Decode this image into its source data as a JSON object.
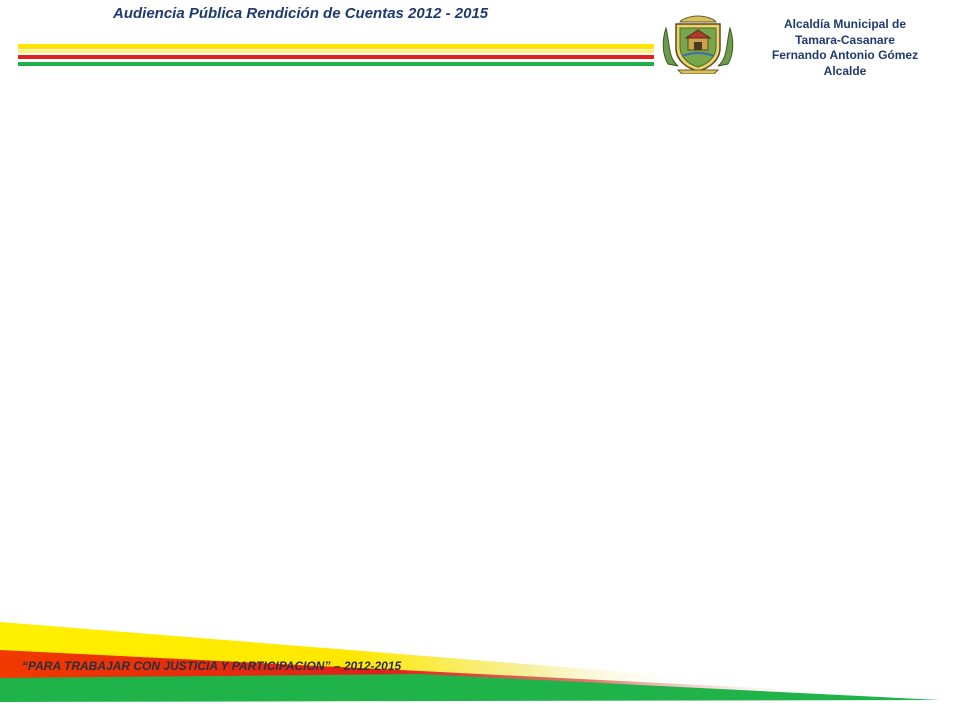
{
  "header": {
    "title": "Audiencia Pública Rendición de Cuentas 2012 - 2015"
  },
  "organization": {
    "line1": "Alcaldía Municipal de",
    "line2": "Tamara-Casanare",
    "line3": "Fernando Antonio Gómez",
    "line4": "Alcalde"
  },
  "footer": {
    "slogan": "“PARA TRABAJAR CON JUSTICIA Y PARTICIPACION” – 2012-2015"
  },
  "colors": {
    "yellow": "#ffe400",
    "red": "#e0201a",
    "green": "#1fae4a",
    "text_blue": "#1f3a6e"
  },
  "icons": {
    "crest": "municipal-coat-of-arms-icon"
  }
}
